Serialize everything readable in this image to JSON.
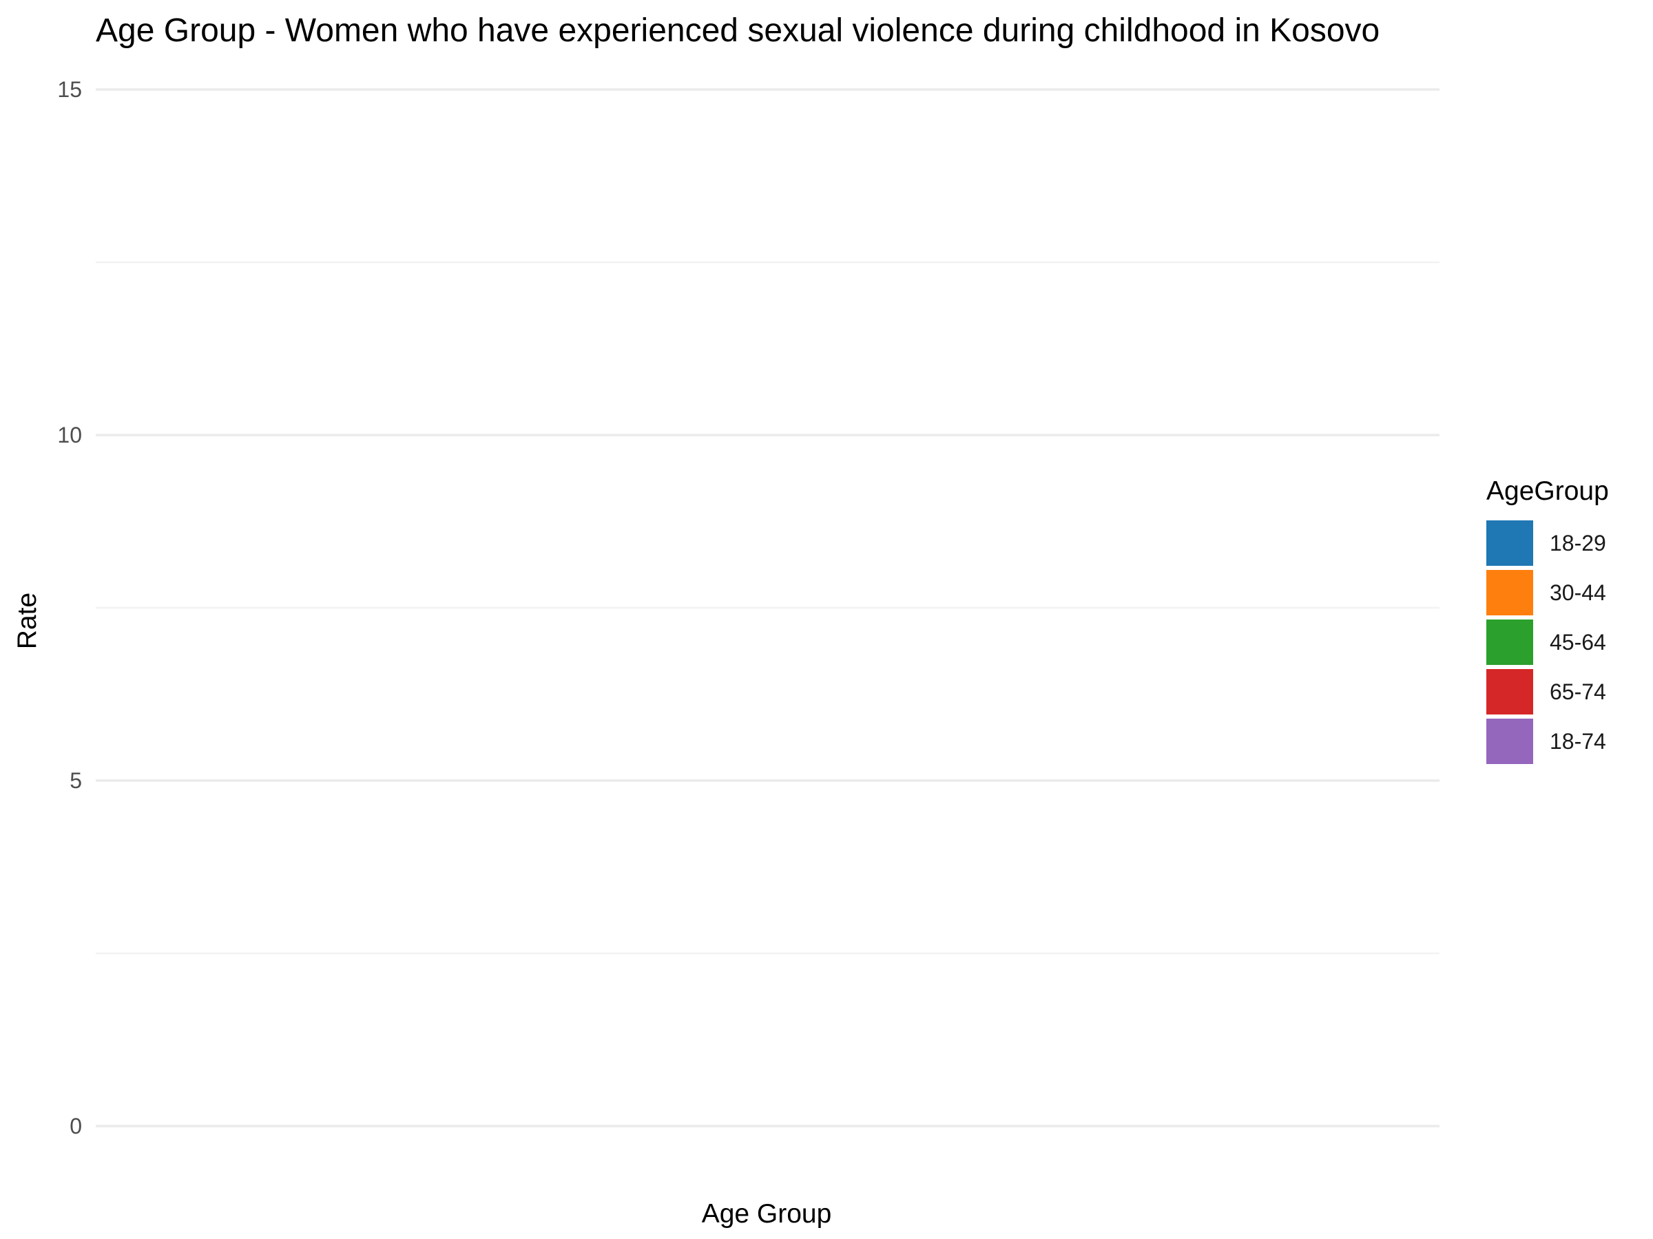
{
  "chart_data": {
    "type": "bar",
    "title": "Age Group - Women who have experienced sexual violence during childhood in Kosovo",
    "xlabel": "Age Group",
    "ylabel": "Rate",
    "ylim": [
      0,
      15
    ],
    "yticks": [
      "0",
      "5",
      "10",
      "15"
    ],
    "grid": true,
    "categories": [],
    "values": [],
    "legend": {
      "title": "AgeGroup",
      "placement": "right",
      "entries": [
        {
          "label": "18-29",
          "color": "#1f77b4"
        },
        {
          "label": "30-44",
          "color": "#ff7f0e"
        },
        {
          "label": "45-64",
          "color": "#2ca02c"
        },
        {
          "label": "65-74",
          "color": "#d62728"
        },
        {
          "label": "18-74",
          "color": "#9467bd"
        }
      ]
    }
  }
}
